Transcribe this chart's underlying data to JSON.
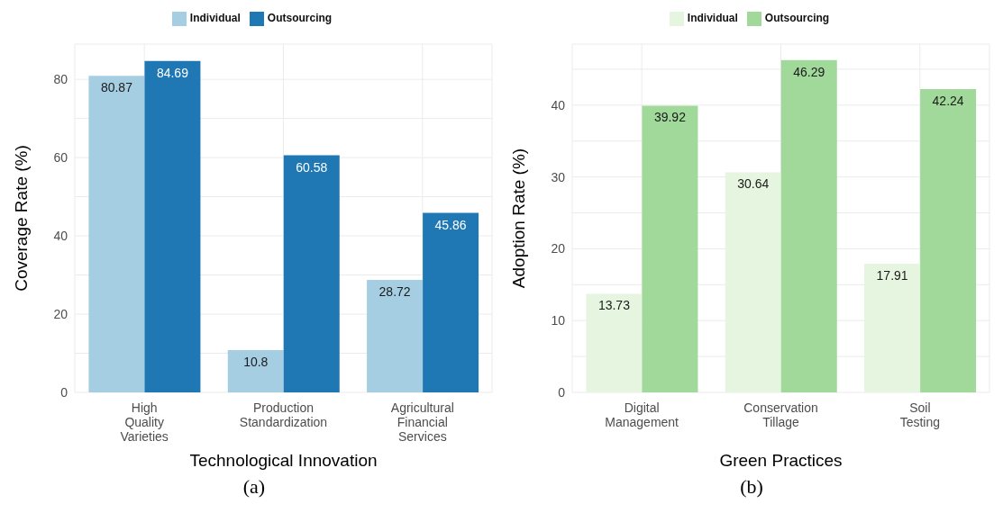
{
  "chart_data": [
    {
      "type": "bar",
      "xlabel": "Technological Innovation",
      "ylabel": "Coverage Rate (%)",
      "categories": [
        "High\nQuality\nVarieties",
        "Production\nStandardization",
        "Agricultural\nFinancial\nServices"
      ],
      "series": [
        {
          "name": "Individual",
          "color": "#a6cee3",
          "values": [
            80.87,
            10.8,
            28.72
          ]
        },
        {
          "name": "Outsourcing",
          "color": "#1f78b4",
          "values": [
            84.69,
            60.58,
            45.86
          ]
        }
      ],
      "ylim": [
        0,
        89
      ],
      "yticks": [
        0,
        {
          "value": 10,
          "label": null
        },
        20,
        {
          "value": 30,
          "label": null
        },
        40,
        {
          "value": 50,
          "label": null
        },
        60,
        {
          "value": 70,
          "label": null
        },
        80
      ],
      "grid": true,
      "legend": "top",
      "data_labels": true,
      "annotations": [
        "(a)"
      ]
    },
    {
      "type": "bar",
      "xlabel": "Green Practices",
      "ylabel": "Adoption Rate (%)",
      "categories": [
        "Digital\nManagement",
        "Conservation\nTillage",
        "Soil\nTesting"
      ],
      "series": [
        {
          "name": "Individual",
          "color": "#e5f5e0",
          "values": [
            13.73,
            30.64,
            17.91
          ]
        },
        {
          "name": "Outsourcing",
          "color": "#a1d99b",
          "values": [
            39.92,
            46.29,
            42.24
          ]
        }
      ],
      "ylim": [
        0,
        48.5
      ],
      "yticks": [
        0,
        {
          "value": 5,
          "label": null
        },
        10,
        {
          "value": 15,
          "label": null
        },
        20,
        {
          "value": 25,
          "label": null
        },
        30,
        {
          "value": 35,
          "label": null
        },
        40,
        {
          "value": 45,
          "label": null
        }
      ],
      "grid": true,
      "legend": "top",
      "data_labels": true,
      "annotations": [
        "(b)"
      ]
    }
  ]
}
